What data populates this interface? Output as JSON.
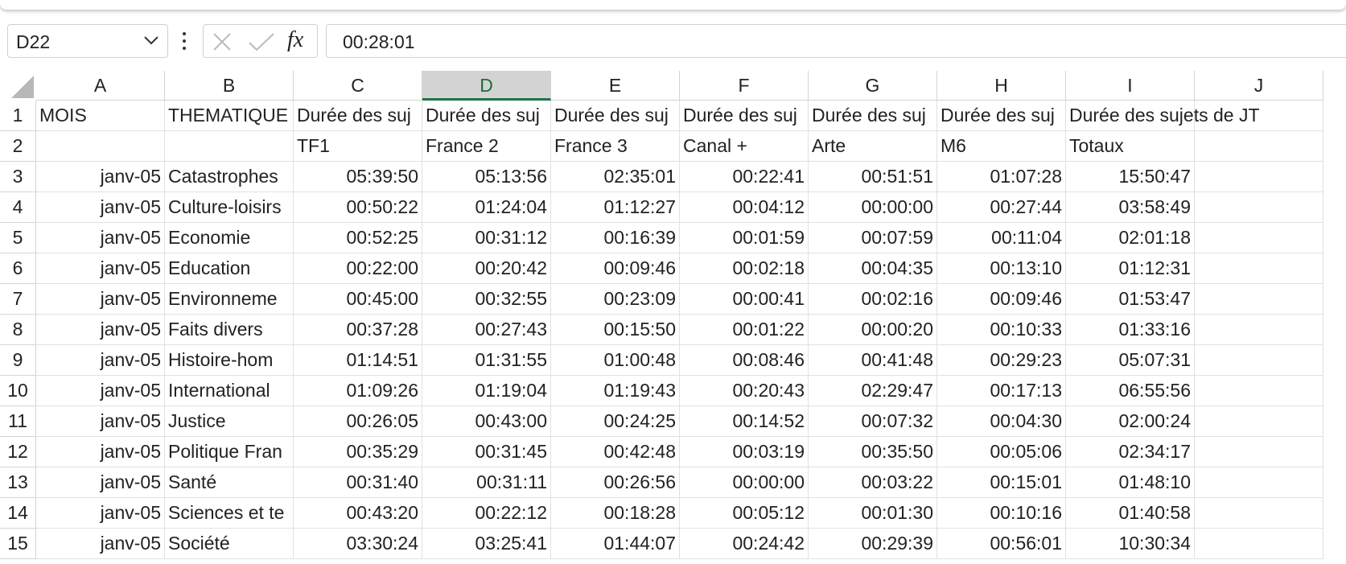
{
  "name_box": "D22",
  "formula_icon": "fx",
  "formula": "00:28:01",
  "columns": [
    "A",
    "B",
    "C",
    "D",
    "E",
    "F",
    "G",
    "H",
    "I",
    "J"
  ],
  "selected_column": "D",
  "rows": [
    {
      "number": "1",
      "cells": {
        "A": "MOIS",
        "B": "THEMATIQUE",
        "C": "Durée des suj",
        "D": "Durée des suj",
        "E": "Durée des suj",
        "F": "Durée des suj",
        "G": "Durée des suj",
        "H": "Durée des suj",
        "I": "Durée des sujets de JT"
      }
    },
    {
      "number": "2",
      "cells": {
        "C": "TF1",
        "D": "France 2",
        "E": "France 3",
        "F": "Canal +",
        "G": "Arte",
        "H": "M6",
        "I": "Totaux"
      }
    },
    {
      "number": "3",
      "cells": {
        "A": "janv-05",
        "B": "Catastrophes",
        "C": "05:39:50",
        "D": "05:13:56",
        "E": "02:35:01",
        "F": "00:22:41",
        "G": "00:51:51",
        "H": "01:07:28",
        "I": "15:50:47"
      }
    },
    {
      "number": "4",
      "cells": {
        "A": "janv-05",
        "B": "Culture-loisirs",
        "C": "00:50:22",
        "D": "01:24:04",
        "E": "01:12:27",
        "F": "00:04:12",
        "G": "00:00:00",
        "H": "00:27:44",
        "I": "03:58:49"
      }
    },
    {
      "number": "5",
      "cells": {
        "A": "janv-05",
        "B": "Economie",
        "C": "00:52:25",
        "D": "00:31:12",
        "E": "00:16:39",
        "F": "00:01:59",
        "G": "00:07:59",
        "H": "00:11:04",
        "I": "02:01:18"
      }
    },
    {
      "number": "6",
      "cells": {
        "A": "janv-05",
        "B": "Education",
        "C": "00:22:00",
        "D": "00:20:42",
        "E": "00:09:46",
        "F": "00:02:18",
        "G": "00:04:35",
        "H": "00:13:10",
        "I": "01:12:31"
      }
    },
    {
      "number": "7",
      "cells": {
        "A": "janv-05",
        "B": "Environneme",
        "C": "00:45:00",
        "D": "00:32:55",
        "E": "00:23:09",
        "F": "00:00:41",
        "G": "00:02:16",
        "H": "00:09:46",
        "I": "01:53:47"
      }
    },
    {
      "number": "8",
      "cells": {
        "A": "janv-05",
        "B": "Faits divers",
        "C": "00:37:28",
        "D": "00:27:43",
        "E": "00:15:50",
        "F": "00:01:22",
        "G": "00:00:20",
        "H": "00:10:33",
        "I": "01:33:16"
      }
    },
    {
      "number": "9",
      "cells": {
        "A": "janv-05",
        "B": "Histoire-hom",
        "C": "01:14:51",
        "D": "01:31:55",
        "E": "01:00:48",
        "F": "00:08:46",
        "G": "00:41:48",
        "H": "00:29:23",
        "I": "05:07:31"
      }
    },
    {
      "number": "10",
      "cells": {
        "A": "janv-05",
        "B": "International",
        "C": "01:09:26",
        "D": "01:19:04",
        "E": "01:19:43",
        "F": "00:20:43",
        "G": "02:29:47",
        "H": "00:17:13",
        "I": "06:55:56"
      }
    },
    {
      "number": "11",
      "cells": {
        "A": "janv-05",
        "B": "Justice",
        "C": "00:26:05",
        "D": "00:43:00",
        "E": "00:24:25",
        "F": "00:14:52",
        "G": "00:07:32",
        "H": "00:04:30",
        "I": "02:00:24"
      }
    },
    {
      "number": "12",
      "cells": {
        "A": "janv-05",
        "B": "Politique Fran",
        "C": "00:35:29",
        "D": "00:31:45",
        "E": "00:42:48",
        "F": "00:03:19",
        "G": "00:35:50",
        "H": "00:05:06",
        "I": "02:34:17"
      }
    },
    {
      "number": "13",
      "cells": {
        "A": "janv-05",
        "B": "Santé",
        "C": "00:31:40",
        "D": "00:31:11",
        "E": "00:26:56",
        "F": "00:00:00",
        "G": "00:03:22",
        "H": "00:15:01",
        "I": "01:48:10"
      }
    },
    {
      "number": "14",
      "cells": {
        "A": "janv-05",
        "B": "Sciences et te",
        "C": "00:43:20",
        "D": "00:22:12",
        "E": "00:18:28",
        "F": "00:05:12",
        "G": "00:01:30",
        "H": "00:10:16",
        "I": "01:40:58"
      }
    },
    {
      "number": "15",
      "cells": {
        "A": "janv-05",
        "B": "Société",
        "C": "03:30:24",
        "D": "03:25:41",
        "E": "01:44:07",
        "F": "00:24:42",
        "G": "00:29:39",
        "H": "00:56:01",
        "I": "10:30:34"
      }
    }
  ]
}
